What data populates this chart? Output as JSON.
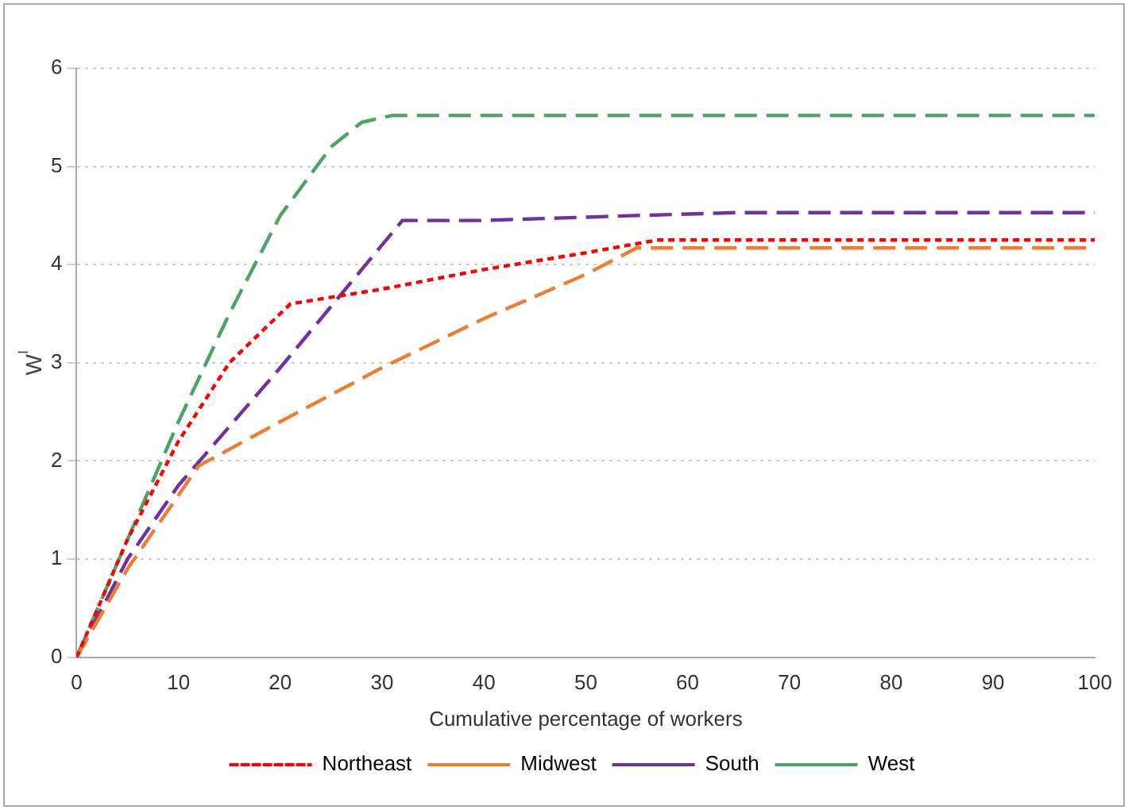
{
  "chart_data": {
    "type": "line",
    "xlabel": "Cumulative percentage of workers",
    "ylabel": "W$^{I}$",
    "xlim": [
      0,
      100
    ],
    "xticks": [
      0,
      10,
      20,
      30,
      40,
      50,
      60,
      70,
      80,
      90,
      100
    ],
    "ylim": [
      0,
      6
    ],
    "yticks": [
      0,
      1,
      2,
      3,
      4,
      5,
      6
    ],
    "grid": "y",
    "legend": "bottom",
    "marker": "none",
    "series": [
      {
        "name": "Northeast",
        "color": "#ff0000",
        "line_style": "dotted",
        "x": [
          0,
          5,
          10,
          15,
          21,
          30,
          40,
          50,
          57,
          100
        ],
        "values": [
          0,
          1.2,
          2.2,
          3.0,
          3.6,
          3.75,
          3.95,
          4.12,
          4.25,
          4.25
        ]
      },
      {
        "name": "Midwest",
        "color": "#ed7d31",
        "line_style": "dashed",
        "x": [
          0,
          5,
          12,
          20,
          30,
          40,
          50,
          55,
          100
        ],
        "values": [
          0,
          0.9,
          1.95,
          2.4,
          2.95,
          3.45,
          3.9,
          4.17,
          4.17
        ]
      },
      {
        "name": "South",
        "color": "#7030a0",
        "line_style": "dashed",
        "x": [
          0,
          5,
          10,
          20,
          28,
          32,
          40,
          55,
          65,
          100
        ],
        "values": [
          0,
          1.0,
          1.75,
          2.95,
          3.95,
          4.45,
          4.45,
          4.5,
          4.53,
          4.53
        ]
      },
      {
        "name": "West",
        "color": "#4aa564",
        "line_style": "dashed",
        "x": [
          0,
          5,
          10,
          15,
          20,
          25,
          28,
          31,
          100
        ],
        "values": [
          0,
          1.2,
          2.4,
          3.5,
          4.5,
          5.2,
          5.45,
          5.52,
          5.52
        ]
      }
    ]
  }
}
